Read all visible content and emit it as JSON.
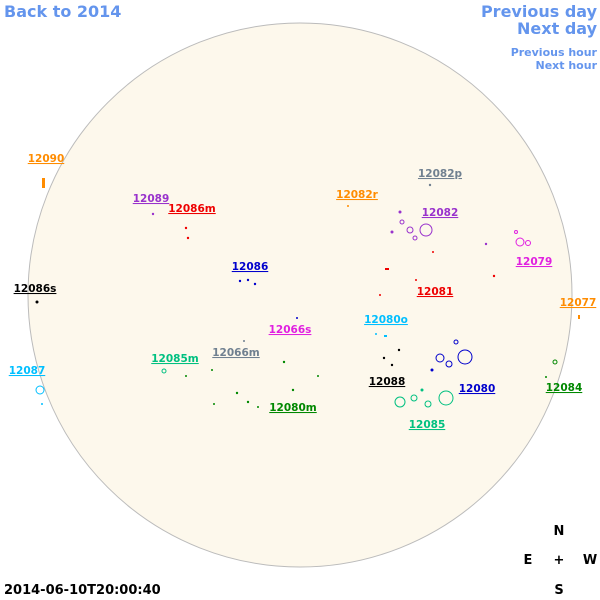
{
  "nav": {
    "back": "Back to 2014",
    "previous_day": "Previous day",
    "next_day": "Next day",
    "previous_hour": "Previous hour",
    "next_hour": "Next hour"
  },
  "timestamp": "2014-06-10T20:00:40",
  "compass": {
    "north": "N",
    "east": "E",
    "center": "+",
    "west": "W",
    "south": "S"
  },
  "regions": [
    {
      "label": "12090"
    },
    {
      "label": "12089"
    },
    {
      "label": "12086m"
    },
    {
      "label": "12082p"
    },
    {
      "label": "12082r"
    },
    {
      "label": "12082"
    },
    {
      "label": "12079"
    },
    {
      "label": "12086"
    },
    {
      "label": "12081"
    },
    {
      "label": "12086s"
    },
    {
      "label": "12077"
    },
    {
      "label": "12080o"
    },
    {
      "label": "12066s"
    },
    {
      "label": "12066m"
    },
    {
      "label": "12085m"
    },
    {
      "label": "12087"
    },
    {
      "label": "12088"
    },
    {
      "label": "12080"
    },
    {
      "label": "12084"
    },
    {
      "label": "12080m"
    },
    {
      "label": "12085"
    }
  ]
}
